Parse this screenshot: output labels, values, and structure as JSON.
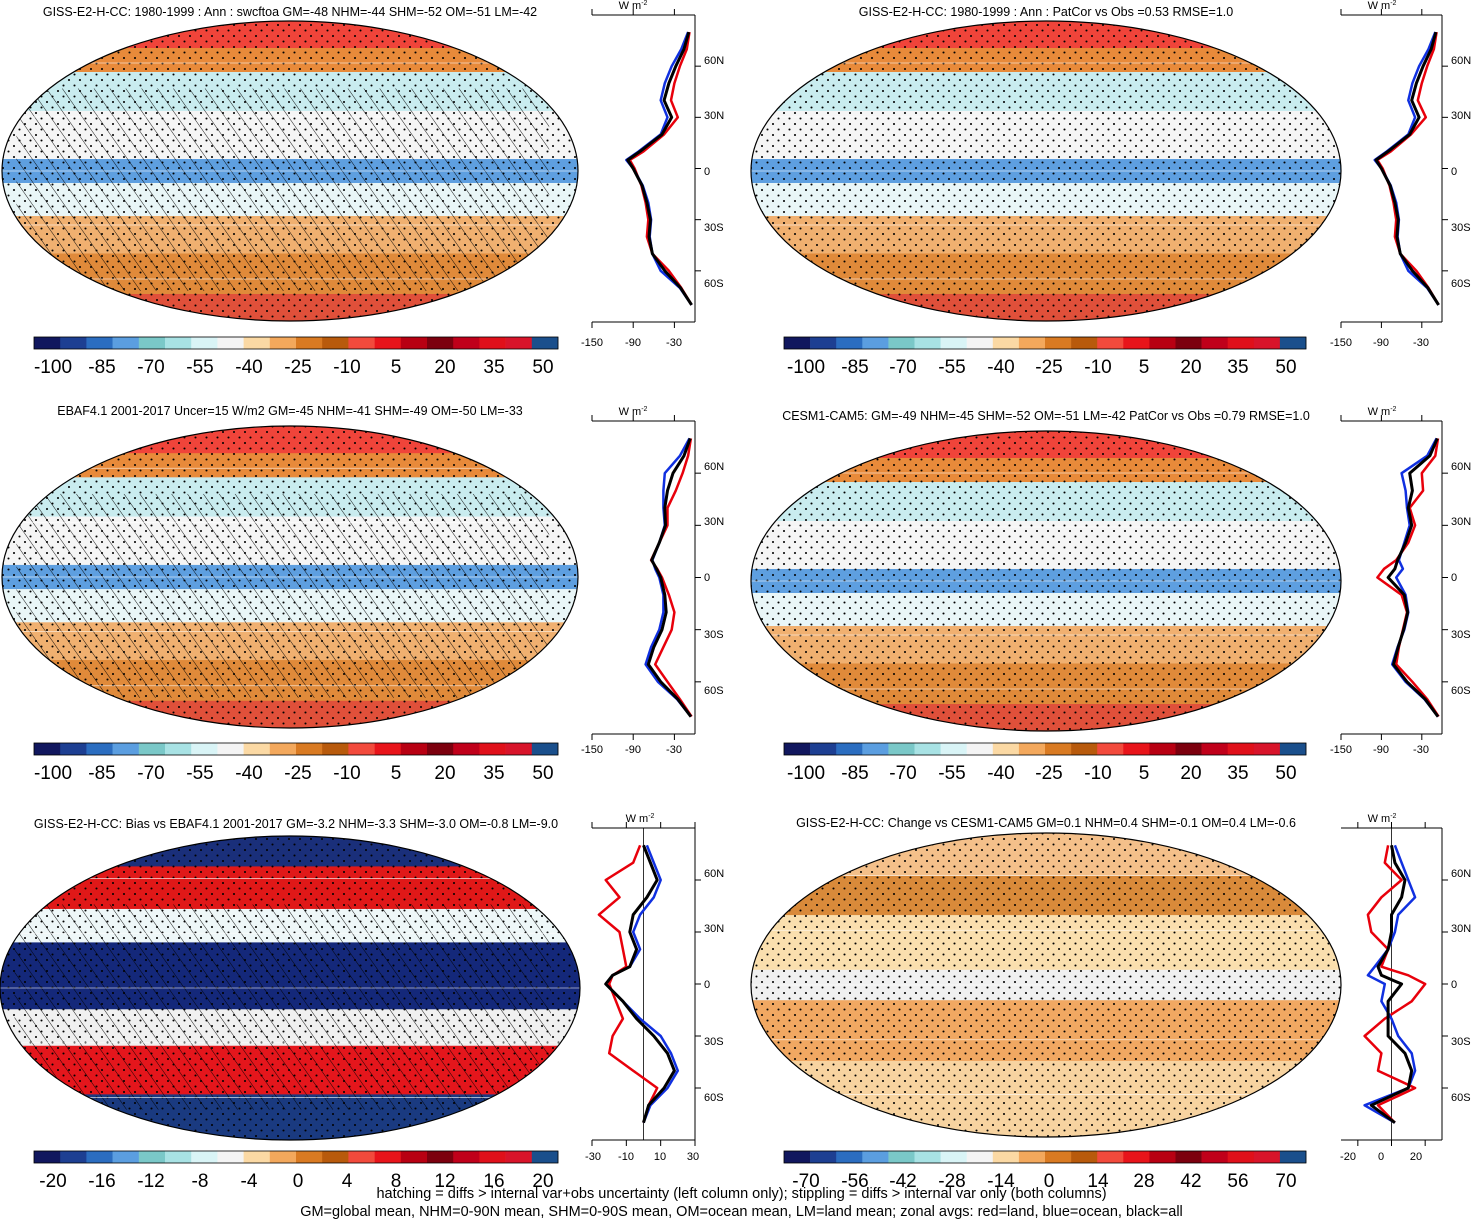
{
  "figure": {
    "footer": [
      "hatching = diffs > internal var+obs uncertainty (left column only); stippling = diffs > internal var only (both columns)",
      "GM=global mean, NHM=0-90N mean, SHM=0-90S mean, OM=ocean mean, LM=land mean; zonal avgs: red=land, blue=ocean, black=all"
    ],
    "zonal_unit": "W m",
    "zonal_unit_sup": "-2",
    "series_colors": {
      "land": "#e8000b",
      "ocean": "#1030e0",
      "all": "#000000"
    }
  },
  "colorbar_palettes": {
    "abs": [
      "#11175e",
      "#1d3f92",
      "#2b6dc0",
      "#5b9ee0",
      "#7ac8c8",
      "#a8e2e4",
      "#d9f4f6",
      "#f4f4f4",
      "#fbd9a4",
      "#f3a85c",
      "#d97a22",
      "#b85a0c",
      "#f24a3c",
      "#e8141a",
      "#b80012",
      "#7c000e",
      "#c0001a",
      "#e0101a",
      "#d8142a",
      "#1a4f8c"
    ],
    "bias": [
      "#11175e",
      "#1d3f92",
      "#2b6dc0",
      "#5b9ee0",
      "#7ac8c8",
      "#a8e2e4",
      "#d9f4f6",
      "#f4f4f4",
      "#fbd9a4",
      "#f3a85c",
      "#d97a22",
      "#b85a0c",
      "#f24a3c",
      "#e8141a",
      "#b80012",
      "#7c000e",
      "#c0001a",
      "#e0101a",
      "#d8142a",
      "#1a4f8c"
    ],
    "change": [
      "#11175e",
      "#1d3f92",
      "#2b6dc0",
      "#5b9ee0",
      "#7ac8c8",
      "#a8e2e4",
      "#d9f4f6",
      "#f4f4f4",
      "#fbd9a4",
      "#f3a85c",
      "#d97a22",
      "#b85a0c",
      "#f24a3c",
      "#e8141a",
      "#b80012",
      "#7c000e",
      "#c0001a",
      "#e0101a",
      "#d8142a",
      "#1a4f8c"
    ]
  },
  "chart_data": [
    {
      "type": "heatmap",
      "panel": "top-left",
      "title": "GISS-E2-H-CC: 1980-1999 : Ann : swcftoa GM=-48 NHM=-44 SHM=-52 OM=-51 LM=-42",
      "map_style": "abs",
      "hatched": true,
      "colorbar": {
        "labels": [
          "-100",
          "-85",
          "-70",
          "-55",
          "-40",
          "-25",
          "-10",
          "5",
          "20",
          "35",
          "50"
        ]
      },
      "zonal": {
        "xlim": [
          -150,
          0
        ],
        "ylim": [
          -90,
          90
        ],
        "xticks": [
          "-150",
          "-90",
          "-30"
        ],
        "yticks": [
          "60N",
          "30N",
          "0",
          "30S",
          "60S"
        ],
        "lat": [
          80,
          70,
          60,
          50,
          40,
          30,
          20,
          10,
          5,
          0,
          -10,
          -20,
          -30,
          -40,
          -50,
          -60,
          -70,
          -80
        ],
        "land": [
          -8,
          -12,
          -22,
          -30,
          -35,
          -25,
          -45,
          -75,
          -95,
          -88,
          -78,
          -72,
          -68,
          -70,
          -62,
          -38,
          -20,
          -5
        ],
        "ocean": [
          -10,
          -20,
          -34,
          -44,
          -50,
          -40,
          -50,
          -82,
          -100,
          -90,
          -76,
          -68,
          -64,
          -66,
          -62,
          -50,
          -22,
          -5
        ],
        "all": [
          -9,
          -16,
          -28,
          -38,
          -45,
          -34,
          -48,
          -80,
          -98,
          -90,
          -77,
          -70,
          -65,
          -67,
          -62,
          -44,
          -21,
          -5
        ]
      }
    },
    {
      "type": "heatmap",
      "panel": "top-right",
      "title": "GISS-E2-H-CC: 1980-1999 : Ann : PatCor vs Obs =0.53 RMSE=1.0",
      "map_style": "abs",
      "hatched": false,
      "colorbar": {
        "labels": [
          "-100",
          "-85",
          "-70",
          "-55",
          "-40",
          "-25",
          "-10",
          "5",
          "20",
          "35",
          "50"
        ]
      },
      "zonal": {
        "xlim": [
          -150,
          0
        ],
        "ylim": [
          -90,
          90
        ],
        "xticks": [
          "-150",
          "-90",
          "-30"
        ],
        "yticks": [
          "60N",
          "30N",
          "0",
          "30S",
          "60S"
        ],
        "lat": [
          80,
          70,
          60,
          50,
          40,
          30,
          20,
          10,
          5,
          0,
          -10,
          -20,
          -30,
          -40,
          -50,
          -60,
          -70,
          -80
        ],
        "land": [
          -8,
          -12,
          -22,
          -30,
          -36,
          -24,
          -46,
          -76,
          -96,
          -88,
          -78,
          -72,
          -68,
          -70,
          -62,
          -38,
          -20,
          -5
        ],
        "ocean": [
          -10,
          -20,
          -34,
          -44,
          -50,
          -40,
          -50,
          -82,
          -100,
          -90,
          -76,
          -68,
          -64,
          -66,
          -62,
          -50,
          -22,
          -5
        ],
        "all": [
          -9,
          -16,
          -28,
          -38,
          -45,
          -34,
          -48,
          -80,
          -98,
          -90,
          -77,
          -70,
          -65,
          -67,
          -62,
          -44,
          -21,
          -5
        ]
      }
    },
    {
      "type": "heatmap",
      "panel": "middle-left",
      "title": "EBAF4.1 2001-2017 Uncer=15 W/m2 GM=-45 NHM=-41 SHM=-49 OM=-50 LM=-33",
      "map_style": "abs",
      "hatched": true,
      "colorbar": {
        "labels": [
          "-100",
          "-85",
          "-70",
          "-55",
          "-40",
          "-25",
          "-10",
          "5",
          "20",
          "35",
          "50"
        ]
      },
      "zonal": {
        "xlim": [
          -150,
          0
        ],
        "ylim": [
          -90,
          90
        ],
        "xticks": [
          "-150",
          "-90",
          "-30"
        ],
        "yticks": [
          "60N",
          "30N",
          "0",
          "30S",
          "60S"
        ],
        "lat": [
          80,
          70,
          60,
          50,
          40,
          30,
          20,
          10,
          5,
          0,
          -10,
          -20,
          -30,
          -40,
          -50,
          -60,
          -70,
          -80
        ],
        "land": [
          -6,
          -10,
          -18,
          -28,
          -40,
          -40,
          -52,
          -64,
          -55,
          -48,
          -38,
          -30,
          -34,
          -46,
          -58,
          -40,
          -22,
          -5
        ],
        "ocean": [
          -8,
          -22,
          -44,
          -46,
          -46,
          -44,
          -52,
          -62,
          -58,
          -52,
          -46,
          -46,
          -52,
          -64,
          -72,
          -54,
          -26,
          -6
        ],
        "all": [
          -7,
          -16,
          -32,
          -40,
          -44,
          -43,
          -52,
          -63,
          -56,
          -50,
          -44,
          -42,
          -48,
          -60,
          -68,
          -50,
          -25,
          -6
        ]
      }
    },
    {
      "type": "heatmap",
      "panel": "middle-right",
      "title": "CESM1-CAM5: GM=-49 NHM=-45 SHM=-52 OM=-51 LM=-42 PatCor vs Obs =0.79 RMSE=1.0",
      "map_style": "abs",
      "hatched": false,
      "colorbar": {
        "labels": [
          "-100",
          "-85",
          "-70",
          "-55",
          "-40",
          "-25",
          "-10",
          "5",
          "20",
          "35",
          "50"
        ]
      },
      "zonal": {
        "xlim": [
          -150,
          0
        ],
        "ylim": [
          -90,
          90
        ],
        "xticks": [
          "-150",
          "-90",
          "-30"
        ],
        "yticks": [
          "60N",
          "30N",
          "0",
          "30S",
          "60S"
        ],
        "lat": [
          80,
          70,
          60,
          50,
          40,
          30,
          20,
          10,
          5,
          0,
          -10,
          -20,
          -30,
          -40,
          -50,
          -60,
          -70,
          -80
        ],
        "land": [
          -6,
          -10,
          -30,
          -28,
          -48,
          -40,
          -50,
          -68,
          -86,
          -96,
          -60,
          -52,
          -58,
          -64,
          -68,
          -44,
          -22,
          -5
        ],
        "ocean": [
          -8,
          -22,
          -60,
          -54,
          -52,
          -48,
          -56,
          -64,
          -58,
          -68,
          -54,
          -50,
          -56,
          -66,
          -74,
          -54,
          -26,
          -6
        ],
        "all": [
          -7,
          -18,
          -48,
          -44,
          -50,
          -45,
          -54,
          -66,
          -70,
          -80,
          -56,
          -51,
          -57,
          -65,
          -72,
          -52,
          -25,
          -6
        ]
      }
    },
    {
      "type": "heatmap",
      "panel": "bottom-left",
      "title": "GISS-E2-H-CC: Bias vs EBAF4.1 2001-2017 GM=-3.2 NHM=-3.3 SHM=-3.0 OM=-0.8 LM=-9.0",
      "map_style": "bias",
      "hatched": true,
      "colorbar": {
        "labels": [
          "-20",
          "-16",
          "-12",
          "-8",
          "-4",
          "0",
          "4",
          "8",
          "12",
          "16",
          "20"
        ]
      },
      "zonal": {
        "xlim": [
          -30,
          30
        ],
        "ylim": [
          -90,
          90
        ],
        "xticks": [
          "-30",
          "-10",
          "10",
          "30"
        ],
        "yticks": [
          "60N",
          "30N",
          "0",
          "30S",
          "60S"
        ],
        "lat": [
          80,
          70,
          60,
          50,
          40,
          30,
          20,
          10,
          5,
          0,
          -10,
          -20,
          -30,
          -40,
          -50,
          -60,
          -70,
          -80
        ],
        "land": [
          -2,
          -6,
          -22,
          -14,
          -26,
          -14,
          -12,
          -10,
          -18,
          -20,
          -16,
          -12,
          -18,
          -20,
          -6,
          8,
          3,
          0
        ],
        "ocean": [
          2,
          6,
          10,
          6,
          -2,
          -6,
          -2,
          -8,
          -18,
          -22,
          -12,
          -2,
          10,
          16,
          20,
          14,
          4,
          0
        ],
        "all": [
          0,
          4,
          8,
          2,
          -6,
          -8,
          -4,
          -8,
          -18,
          -22,
          -12,
          -4,
          6,
          14,
          18,
          12,
          3,
          0
        ]
      }
    },
    {
      "type": "heatmap",
      "panel": "bottom-right",
      "title": "GISS-E2-H-CC: Change vs CESM1-CAM5 GM=0.1 NHM=0.4 SHM=-0.1 OM=0.4 LM=-0.6",
      "map_style": "change",
      "hatched": false,
      "colorbar": {
        "labels": [
          "-70",
          "-56",
          "-42",
          "-28",
          "-14",
          "0",
          "14",
          "28",
          "42",
          "56",
          "70"
        ]
      },
      "zonal": {
        "xlim": [
          -30,
          30
        ],
        "ylim": [
          -90,
          90
        ],
        "xticks": [
          "-20",
          "0",
          "20"
        ],
        "yticks": [
          "60N",
          "30N",
          "0",
          "30S",
          "60S"
        ],
        "lat": [
          80,
          70,
          60,
          50,
          40,
          30,
          20,
          10,
          5,
          0,
          -10,
          -20,
          -30,
          -40,
          -50,
          -60,
          -70,
          -80
        ],
        "land": [
          -2,
          -4,
          6,
          -6,
          -14,
          -12,
          -2,
          -6,
          10,
          20,
          12,
          -4,
          -16,
          -6,
          -8,
          14,
          -8,
          2
        ],
        "ocean": [
          2,
          6,
          10,
          14,
          4,
          2,
          -2,
          -10,
          -14,
          -4,
          -6,
          0,
          4,
          12,
          14,
          10,
          -16,
          2
        ],
        "all": [
          0,
          2,
          8,
          6,
          0,
          0,
          -2,
          -8,
          -6,
          6,
          -2,
          -2,
          -2,
          8,
          12,
          10,
          -12,
          2
        ]
      }
    }
  ]
}
